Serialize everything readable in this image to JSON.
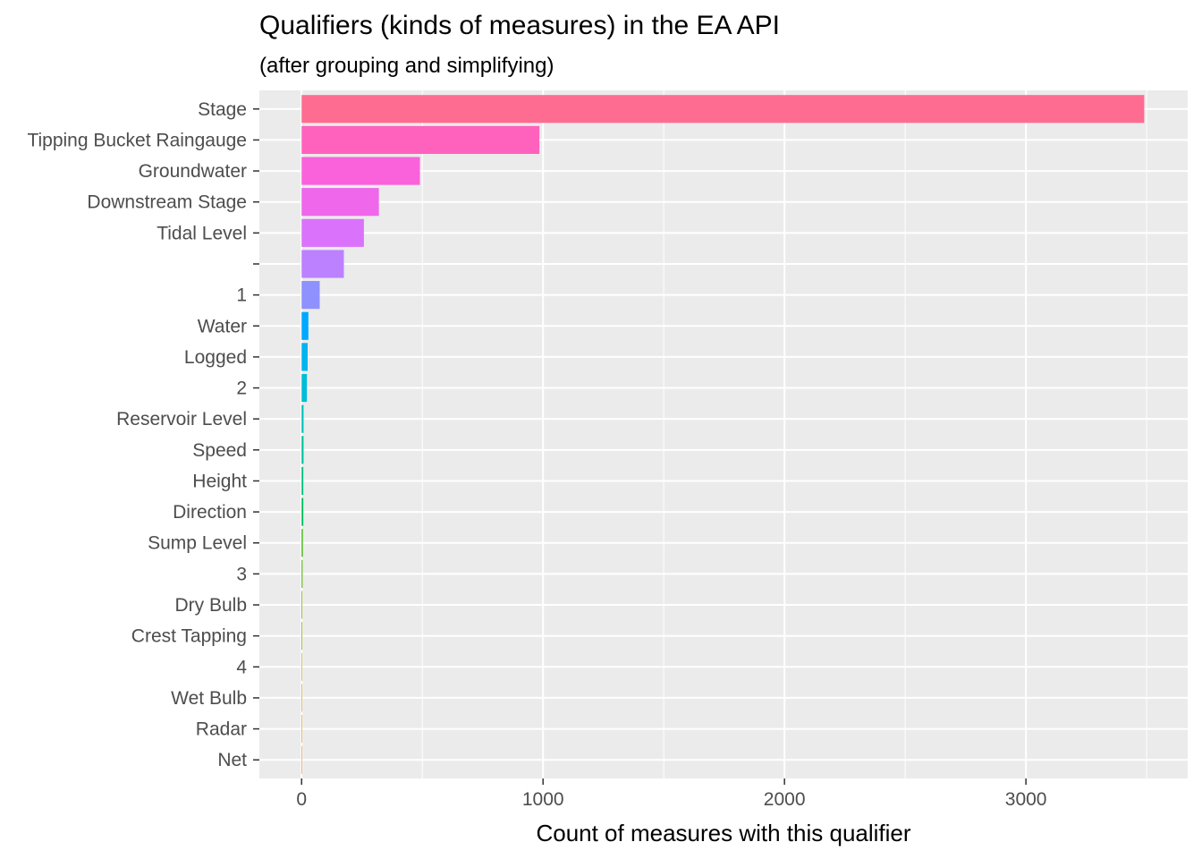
{
  "chart_data": {
    "type": "bar",
    "orientation": "horizontal",
    "title": "Qualifiers (kinds of measures) in the EA API",
    "subtitle": "(after grouping and simplifying)",
    "xlabel": "Count of measures with this qualifier",
    "ylabel": "",
    "xlim": [
      -175,
      3670
    ],
    "x_ticks": [
      0,
      1000,
      2000,
      3000
    ],
    "x_tick_labels": [
      "0",
      "1000",
      "2000",
      "3000"
    ],
    "grid": true,
    "legend": "none",
    "categories": [
      "Stage",
      "Tipping Bucket Raingauge",
      "Groundwater",
      "Downstream Stage",
      "Tidal Level",
      "",
      "1",
      "Water",
      "Logged",
      "2",
      "Reservoir Level",
      "Speed",
      "Height",
      "Direction",
      "Sump Level",
      "3",
      "Dry Bulb",
      "Crest Tapping",
      "4",
      "Wet Bulb",
      "Radar",
      "Net"
    ],
    "values": [
      3490,
      985,
      490,
      320,
      258,
      175,
      75,
      28,
      25,
      22,
      8,
      8,
      7,
      7,
      5,
      4,
      3,
      3,
      2,
      1,
      1,
      1
    ],
    "colors": [
      "#FF6C91",
      "#FF62BC",
      "#FA62DB",
      "#EF67EB",
      "#DB72FB",
      "#BC81FF",
      "#8F91FF",
      "#00A9FF",
      "#00B4F0",
      "#00BCD8",
      "#00C0B8",
      "#00C19C",
      "#00BF7D",
      "#00BD5C",
      "#39B600",
      "#5BB300",
      "#7CAE00",
      "#99A800",
      "#B3A000",
      "#C99800",
      "#DC8D00",
      "#EA8331"
    ]
  }
}
